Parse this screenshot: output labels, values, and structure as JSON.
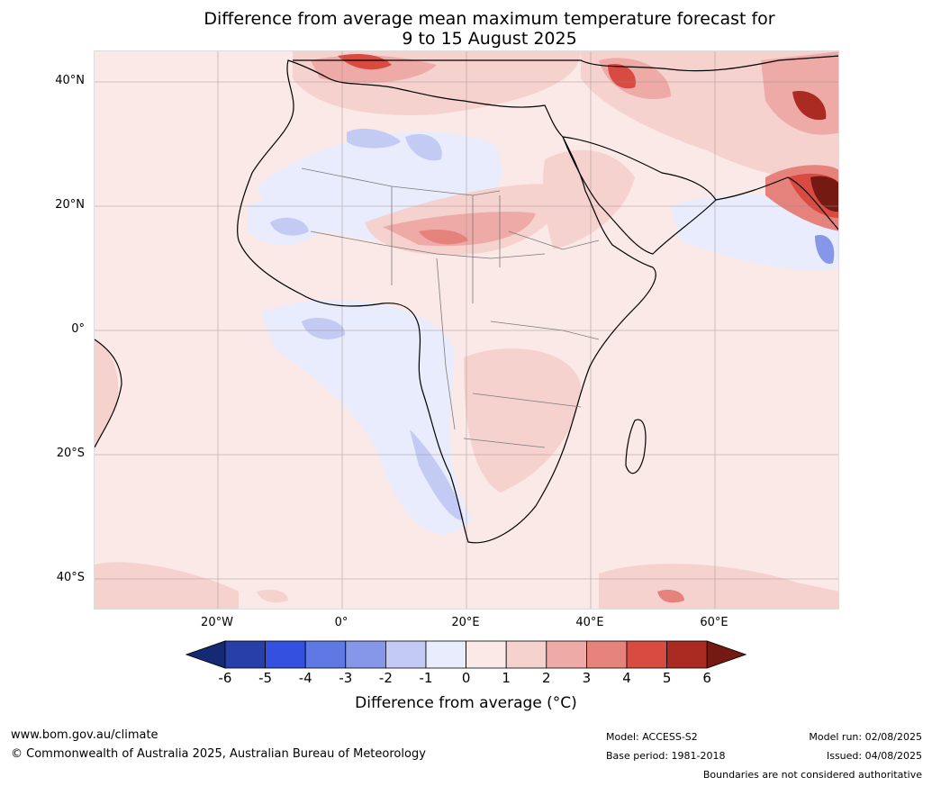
{
  "title": {
    "line1": "Difference from average mean maximum temperature forecast for",
    "line2": "9 to 15 August 2025"
  },
  "map": {
    "lat_labels": [
      "40°N",
      "20°N",
      "0°",
      "20°S",
      "40°S"
    ],
    "lon_labels": [
      "20°W",
      "0°",
      "20°E",
      "40°E",
      "60°E"
    ],
    "base_color": "#fbe9e7"
  },
  "legend": {
    "ticks": [
      "-6",
      "-5",
      "-4",
      "-3",
      "-2",
      "-1",
      "0",
      "1",
      "2",
      "3",
      "4",
      "5",
      "6"
    ],
    "colors": [
      "#152a74",
      "#283ea9",
      "#3350e0",
      "#5f78e4",
      "#8697e9",
      "#c3cbf5",
      "#e9ecfc",
      "#fbe9e7",
      "#f6d2cf",
      "#eeaaa6",
      "#e6827c",
      "#d94a40",
      "#ab2a22",
      "#741a12"
    ],
    "label": "Difference from average (°C)"
  },
  "footer": {
    "website": "www.bom.gov.au/climate",
    "copyright": "© Commonwealth of Australia 2025, Australian Bureau of Meteorology",
    "model": "Model: ACCESS-S2",
    "base_period": "Base period: 1981-2018",
    "model_run": "Model run: 02/08/2025",
    "issued": "Issued: 04/08/2025",
    "disclaimer": "Boundaries are not considered authoritative"
  }
}
